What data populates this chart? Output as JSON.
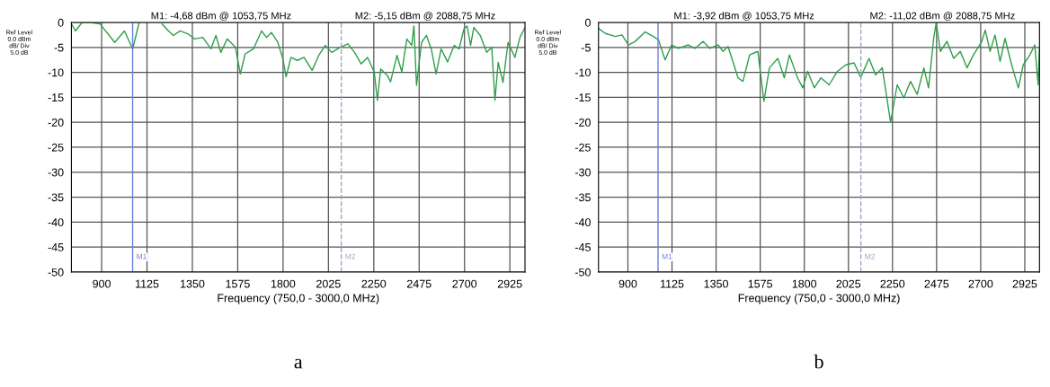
{
  "chart_data": [
    {
      "type": "line",
      "xlabel": "Frequency (750,0 - 3000,0 MHz)",
      "xlim": [
        750,
        3000
      ],
      "ylim": [
        -50,
        0
      ],
      "xticks": [
        900,
        1125,
        1350,
        1575,
        1800,
        2025,
        2250,
        2475,
        2700,
        2925
      ],
      "yticks": [
        0,
        -5,
        -10,
        -15,
        -20,
        -25,
        -30,
        -35,
        -40,
        -45,
        -50
      ],
      "grid": true,
      "series": [
        {
          "color": "#2e9e4a",
          "x": [
            750,
            770,
            803,
            843,
            892,
            965,
            1013,
            1054,
            1086,
            1110,
            1200,
            1232,
            1256,
            1289,
            1329,
            1361,
            1402,
            1442,
            1467,
            1491,
            1523,
            1564,
            1588,
            1612,
            1653,
            1693,
            1718,
            1742,
            1774,
            1799,
            1815,
            1839,
            1871,
            1904,
            1944,
            1977,
            2009,
            2041,
            2082,
            2122,
            2155,
            2187,
            2219,
            2252,
            2268,
            2284,
            2317,
            2333,
            2365,
            2389,
            2414,
            2438,
            2449,
            2462,
            2487,
            2511,
            2535,
            2559,
            2584,
            2616,
            2649,
            2673,
            2697,
            2713,
            2730,
            2746,
            2778,
            2810,
            2835,
            2851,
            2867,
            2891,
            2916,
            2950,
            2975,
            3000
          ],
          "values": [
            -0.3,
            -1.7,
            0,
            0,
            -0.3,
            -4,
            -1.7,
            -5.3,
            0,
            null,
            -0.3,
            -1.7,
            -2.6,
            -1.7,
            -2.3,
            -3.3,
            -3,
            -5.3,
            -2.6,
            -6,
            -3.3,
            -5,
            -10.3,
            -6.3,
            -5.3,
            -1.7,
            -3,
            -2,
            -4,
            -7.3,
            -10.9,
            -7,
            -7.6,
            -7,
            -9.6,
            -6.6,
            -4.6,
            -6,
            -5,
            -4.3,
            -6,
            -8.3,
            -7,
            -9.9,
            -15.6,
            -9.3,
            -10.6,
            -11.9,
            -6.6,
            -9.9,
            -3.3,
            -4.6,
            -0.7,
            -12.6,
            -4,
            -2.6,
            -5.3,
            -10.3,
            -5.3,
            -7.9,
            -4.6,
            -5.3,
            -1.3,
            -0.7,
            -4.6,
            -1,
            -2.6,
            -6,
            -5,
            -15.6,
            -8,
            -12,
            -4,
            -7,
            -3,
            -1
          ]
        }
      ],
      "ref_lines": [
        {
          "axis": "x",
          "value": 1053.75,
          "label": "M1",
          "color": "#6a7fd8",
          "line_style": "solid"
        },
        {
          "axis": "x",
          "value": 2088.75,
          "label": "M2",
          "color": "#9aa4c8",
          "line_style": "dashed"
        }
      ],
      "annotations": [
        "Ref Level\n0.0 dBm\ndB/ Div\n5.0 dB",
        "M1: -4,68 dBm @ 1053,75 MHz",
        "M2: -5,15 dBm @ 2088,75 MHz",
        "a"
      ]
    },
    {
      "type": "line",
      "xlabel": "Frequency (750,0 - 3000,0 MHz)",
      "xlim": [
        750,
        3000
      ],
      "ylim": [
        -50,
        0
      ],
      "xticks": [
        900,
        1125,
        1350,
        1575,
        1800,
        2025,
        2250,
        2475,
        2700,
        2925
      ],
      "yticks": [
        0,
        -5,
        -10,
        -15,
        -20,
        -25,
        -30,
        -35,
        -40,
        -45,
        -50
      ],
      "grid": true,
      "series": [
        {
          "color": "#2e9e4a",
          "x": [
            750,
            785,
            836,
            870,
            903,
            937,
            988,
            1030,
            1056,
            1090,
            1123,
            1157,
            1208,
            1242,
            1284,
            1318,
            1360,
            1386,
            1411,
            1462,
            1487,
            1521,
            1563,
            1594,
            1622,
            1665,
            1698,
            1724,
            1766,
            1792,
            1817,
            1851,
            1885,
            1927,
            1969,
            2012,
            2054,
            2088,
            2130,
            2164,
            2198,
            2240,
            2274,
            2308,
            2342,
            2376,
            2410,
            2434,
            2460,
            2473,
            2494,
            2528,
            2562,
            2596,
            2630,
            2663,
            2706,
            2723,
            2748,
            2773,
            2799,
            2824,
            2858,
            2892,
            2917,
            2951,
            2976,
            2993,
            3000
          ],
          "values": [
            -1.2,
            -2.2,
            -2.8,
            -2.5,
            -4.5,
            -3.8,
            -1.9,
            -2.8,
            -3.5,
            -7.5,
            -4.5,
            -5.2,
            -4.5,
            -5.2,
            -3.8,
            -5.2,
            -4.5,
            -5.8,
            -4.8,
            -11.1,
            -11.8,
            -6.5,
            -5.8,
            -15.8,
            -9.1,
            -7.2,
            -11.1,
            -6.5,
            -11.1,
            -13.1,
            -9.8,
            -13.1,
            -11.1,
            -12.5,
            -9.8,
            -8.5,
            -8.1,
            -11,
            -7.2,
            -10.5,
            -9.1,
            -20,
            -12.5,
            -15.1,
            -11.8,
            -14.4,
            -9.1,
            -13.1,
            -3.2,
            0,
            -5.8,
            -3.8,
            -7.2,
            -5.8,
            -9.1,
            -6.5,
            -3.8,
            -1.5,
            -5.8,
            -2.5,
            -7.8,
            -3.2,
            -8.5,
            -13.1,
            -8.5,
            -6.5,
            -4.5,
            -12.5,
            -5.2
          ]
        }
      ],
      "ref_lines": [
        {
          "axis": "x",
          "value": 1053.75,
          "label": "M1",
          "color": "#6a7fd8",
          "line_style": "solid"
        },
        {
          "axis": "x",
          "value": 2088.75,
          "label": "M2",
          "color": "#9aa4c8",
          "line_style": "dashed"
        }
      ],
      "annotations": [
        "Ref Level\n0.0 dBm\ndB/ Div\n5.0 dB",
        "M1: -3,92 dBm @ 1053,75 MHz",
        "M2: -11,02 dBm @ 2088,75 MHz",
        "b"
      ]
    }
  ]
}
